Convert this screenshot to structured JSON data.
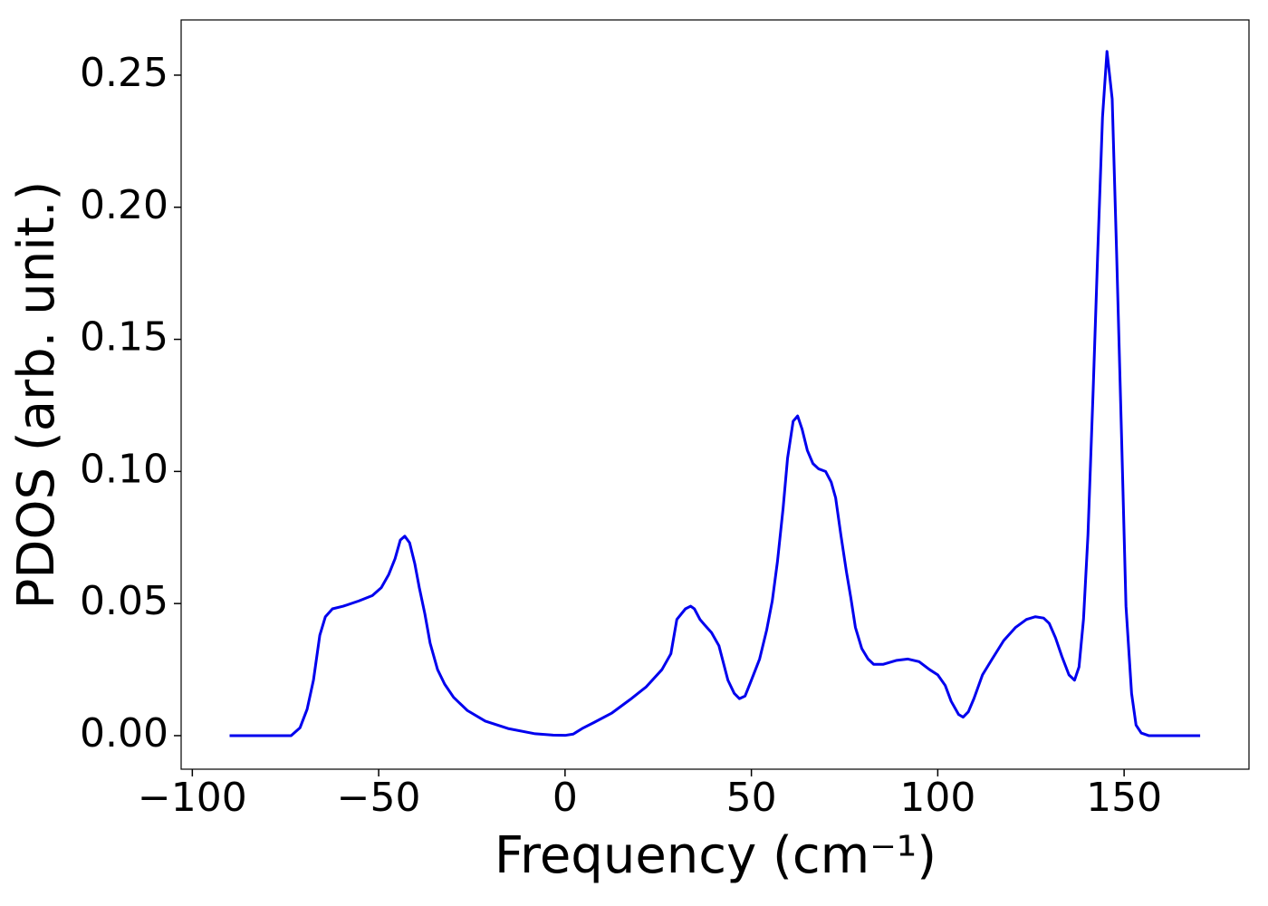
{
  "chart_data": {
    "type": "line",
    "xlabel": "Frequency (cm⁻¹)",
    "ylabel": "PDOS (arb. unit.)",
    "x": [
      -90,
      -80,
      -73.5,
      -71.1,
      -69.2,
      -67.5,
      -65.8,
      -64.3,
      -62.4,
      -59.5,
      -55.3,
      -51.7,
      -49.3,
      -47.3,
      -45.6,
      -44.2,
      -43,
      -41.7,
      -40.3,
      -39.1,
      -37.6,
      -36.2,
      -34.2,
      -32.3,
      -29.9,
      -26.2,
      -21.4,
      -15.3,
      -8,
      -3.2,
      0,
      2.2,
      4.6,
      7.8,
      12.6,
      17.5,
      21.8,
      26,
      28.4,
      30,
      32.3,
      33.7,
      34.7,
      36.2,
      37.4,
      39.3,
      41.3,
      43.7,
      45.4,
      46.8,
      48.3,
      50,
      52.2,
      54.1,
      55.6,
      57,
      58.5,
      59.7,
      61.2,
      62.4,
      63.6,
      65,
      66.5,
      68,
      69.9,
      71.4,
      72.6,
      74,
      75.5,
      76.7,
      77.9,
      79.6,
      81.3,
      82.8,
      85.4,
      89,
      92,
      95,
      97.8,
      100,
      102,
      103.6,
      105.6,
      106.8,
      108.2,
      109.7,
      112,
      114.6,
      117.7,
      120.9,
      123.8,
      126.2,
      128.4,
      129.9,
      131.6,
      133.3,
      135.2,
      136.7,
      137.9,
      139.1,
      140.3,
      141.7,
      142.9,
      144.2,
      145.4,
      146.8,
      148,
      149.3,
      150.5,
      152,
      153.2,
      154.6,
      156.6,
      170.4
    ],
    "series": [
      {
        "name": "PDOS",
        "color": "#0000ee",
        "values": [
          0,
          0,
          0,
          0.003,
          0.01,
          0.021,
          0.038,
          0.045,
          0.048,
          0.049,
          0.051,
          0.053,
          0.056,
          0.061,
          0.067,
          0.074,
          0.0755,
          0.073,
          0.065,
          0.056,
          0.046,
          0.035,
          0.025,
          0.0195,
          0.0145,
          0.0095,
          0.0055,
          0.0027,
          0.0007,
          0.0002,
          0.0001,
          0.0006,
          0.0027,
          0.005,
          0.0086,
          0.0137,
          0.0185,
          0.025,
          0.031,
          0.044,
          0.048,
          0.049,
          0.048,
          0.044,
          0.042,
          0.039,
          0.034,
          0.021,
          0.016,
          0.014,
          0.015,
          0.021,
          0.029,
          0.04,
          0.051,
          0.066,
          0.086,
          0.105,
          0.119,
          0.121,
          0.116,
          0.108,
          0.103,
          0.101,
          0.1,
          0.096,
          0.09,
          0.076,
          0.062,
          0.052,
          0.041,
          0.033,
          0.029,
          0.027,
          0.027,
          0.0285,
          0.029,
          0.028,
          0.025,
          0.023,
          0.019,
          0.013,
          0.008,
          0.007,
          0.009,
          0.014,
          0.023,
          0.029,
          0.036,
          0.041,
          0.044,
          0.045,
          0.0445,
          0.0425,
          0.037,
          0.03,
          0.023,
          0.021,
          0.026,
          0.044,
          0.076,
          0.131,
          0.182,
          0.234,
          0.259,
          0.241,
          0.182,
          0.114,
          0.049,
          0.016,
          0.004,
          0.001,
          0,
          0
        ]
      }
    ],
    "xlim": [
      -103,
      183.5
    ],
    "xticks": [
      {
        "value": -100,
        "label": "−100"
      },
      {
        "value": -50,
        "label": "−50"
      },
      0,
      50,
      100,
      150
    ],
    "ylim": [
      -0.0127,
      0.2709
    ],
    "yticks": [
      {
        "value": 0,
        "label": "0.00"
      },
      {
        "value": 0.05,
        "label": "0.05"
      },
      {
        "value": 0.1,
        "label": "0.10"
      },
      {
        "value": 0.15,
        "label": "0.15"
      },
      {
        "value": 0.2,
        "label": "0.20"
      },
      {
        "value": 0.25,
        "label": "0.25"
      }
    ],
    "grid": false
  }
}
